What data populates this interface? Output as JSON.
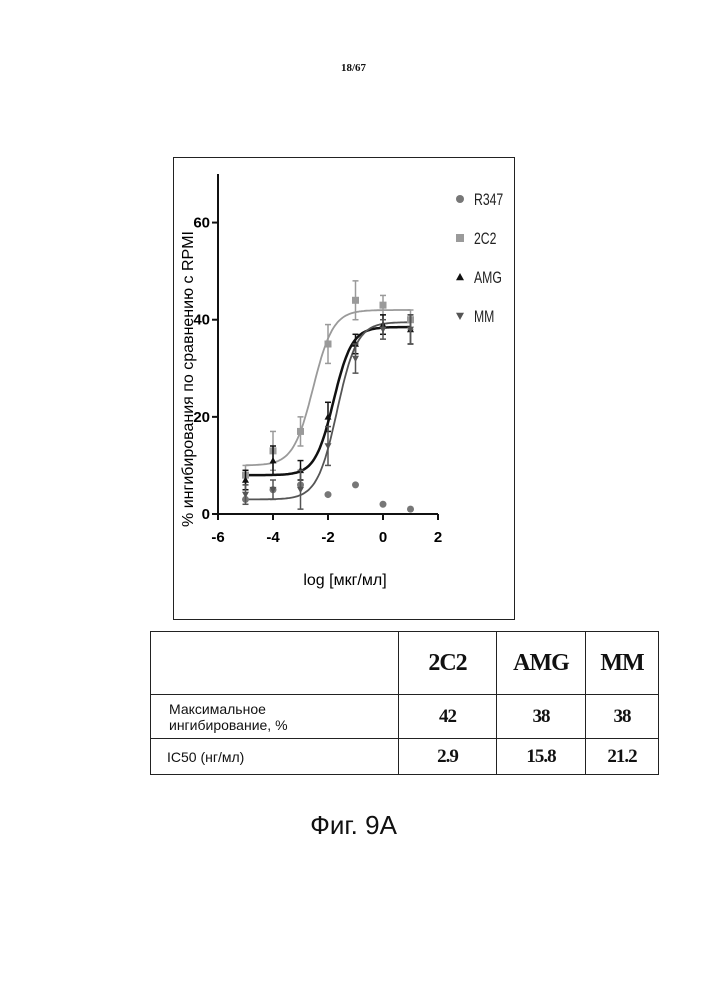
{
  "page_number": "18/67",
  "chart_data": {
    "type": "scatter",
    "xlabel": "log [мкг/мл]",
    "ylabel": "% ингибирования по сравнению с RPMI",
    "xlim": [
      -6,
      2
    ],
    "ylim": [
      0,
      70
    ],
    "x_ticks": [
      "-6",
      "-4",
      "-2",
      "0",
      "2"
    ],
    "y_ticks": [
      "0",
      "20",
      "40",
      "60"
    ],
    "legend_position": "top-right",
    "legend": [
      "R347",
      "2C2",
      "AMG",
      "MM"
    ],
    "series": [
      {
        "name": "R347",
        "marker": "circle",
        "color": "#777777",
        "has_fit": false,
        "points": [
          [
            -5,
            3
          ],
          [
            -4,
            5
          ],
          [
            -3,
            6
          ],
          [
            -2,
            4
          ],
          [
            -1,
            6
          ],
          [
            0,
            2
          ],
          [
            1,
            1
          ]
        ]
      },
      {
        "name": "2C2",
        "marker": "square",
        "color": "#9a9a9a",
        "has_fit": true,
        "fit": {
          "bottom": 10,
          "top": 42,
          "log_ec50": -2.54,
          "hill": 1.2
        },
        "points": [
          [
            -5,
            8,
            2
          ],
          [
            -4,
            13,
            4
          ],
          [
            -3,
            17,
            3
          ],
          [
            -2,
            35,
            4
          ],
          [
            -1,
            44,
            4
          ],
          [
            0,
            43,
            2
          ],
          [
            1,
            40,
            2
          ]
        ]
      },
      {
        "name": "AMG",
        "marker": "triangle-up",
        "color": "#111111",
        "has_fit": true,
        "fit": {
          "bottom": 8,
          "top": 38.5,
          "log_ec50": -1.8,
          "hill": 1.3
        },
        "points": [
          [
            -5,
            7,
            2
          ],
          [
            -4,
            11,
            3
          ],
          [
            -3,
            9,
            2
          ],
          [
            -2,
            20,
            3
          ],
          [
            -1,
            35,
            2
          ],
          [
            0,
            39,
            2
          ],
          [
            1,
            38,
            3
          ]
        ]
      },
      {
        "name": "MM",
        "marker": "triangle-down",
        "color": "#555555",
        "has_fit": true,
        "fit": {
          "bottom": 3,
          "top": 39.5,
          "log_ec50": -1.67,
          "hill": 1.2
        },
        "points": [
          [
            -5,
            4,
            2
          ],
          [
            -4,
            5,
            2
          ],
          [
            -3,
            5,
            4
          ],
          [
            -2,
            14,
            4
          ],
          [
            -1,
            32,
            3
          ],
          [
            0,
            38,
            2
          ],
          [
            1,
            38,
            3
          ]
        ]
      }
    ]
  },
  "table": {
    "headers": [
      "",
      "2C2",
      "AMG",
      "MM"
    ],
    "rows": [
      {
        "label_line1": "Максимальное",
        "label_line2": "ингибирование, %",
        "values": [
          "42",
          "38",
          "38"
        ]
      },
      {
        "label": "IC50 (нг/мл)",
        "values": [
          "2.9",
          "15.8",
          "21.2"
        ]
      }
    ]
  },
  "caption": "Фиг. 9A"
}
